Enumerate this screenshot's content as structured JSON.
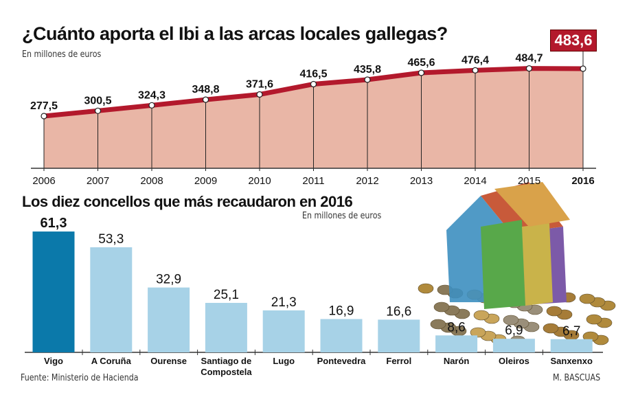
{
  "chart_data": [
    {
      "type": "area",
      "title": "¿Cuánto aporta el Ibi a las arcas locales gallegas?",
      "subtitle": "En millones de euros",
      "categories": [
        "2006",
        "2007",
        "2008",
        "2009",
        "2010",
        "2011",
        "2012",
        "2013",
        "2014",
        "2015",
        "2016"
      ],
      "values": [
        277.5,
        300.5,
        324.3,
        348.8,
        371.6,
        416.5,
        435.8,
        465.6,
        476.4,
        484.7,
        483.6
      ],
      "value_labels": [
        "277,5",
        "300,5",
        "324,3",
        "348,8",
        "371,6",
        "416,5",
        "435,8",
        "465,6",
        "476,4",
        "484,7",
        "483,6"
      ],
      "highlight_label": "483,6",
      "colors": {
        "line": "#b3192c",
        "fill": "#e9b6a6"
      }
    },
    {
      "type": "bar",
      "title": "Los diez concellos que más recaudaron en 2016",
      "subtitle": "En millones de euros",
      "categories": [
        "Vigo",
        "A Coruña",
        "Ourense",
        "Santiago de Compostela",
        "Lugo",
        "Pontevedra",
        "Ferrol",
        "Narón",
        "Oleiros",
        "Sanxenxo"
      ],
      "category_lines": [
        [
          "Vigo"
        ],
        [
          "A Coruña"
        ],
        [
          "Ourense"
        ],
        [
          "Santiago de",
          "Compostela"
        ],
        [
          "Lugo"
        ],
        [
          "Pontevedra"
        ],
        [
          "Ferrol"
        ],
        [
          "Narón"
        ],
        [
          "Oleiros"
        ],
        [
          "Sanxenxo"
        ]
      ],
      "values": [
        61.3,
        53.3,
        32.9,
        25.1,
        21.3,
        16.9,
        16.6,
        8.6,
        6.9,
        6.7
      ],
      "value_labels": [
        "61,3",
        "53,3",
        "32,9",
        "25,1",
        "21,3",
        "16,9",
        "16,6",
        "8,6",
        "6,9",
        "6,7"
      ],
      "colors": {
        "highlight": "#0b79aa",
        "bar": "#a7d2e7"
      }
    }
  ],
  "footer": {
    "source": "Fuente: Ministerio de Hacienda",
    "credit": "M. BASCUAS"
  },
  "illustration": "euro-banknote-house-with-coins"
}
